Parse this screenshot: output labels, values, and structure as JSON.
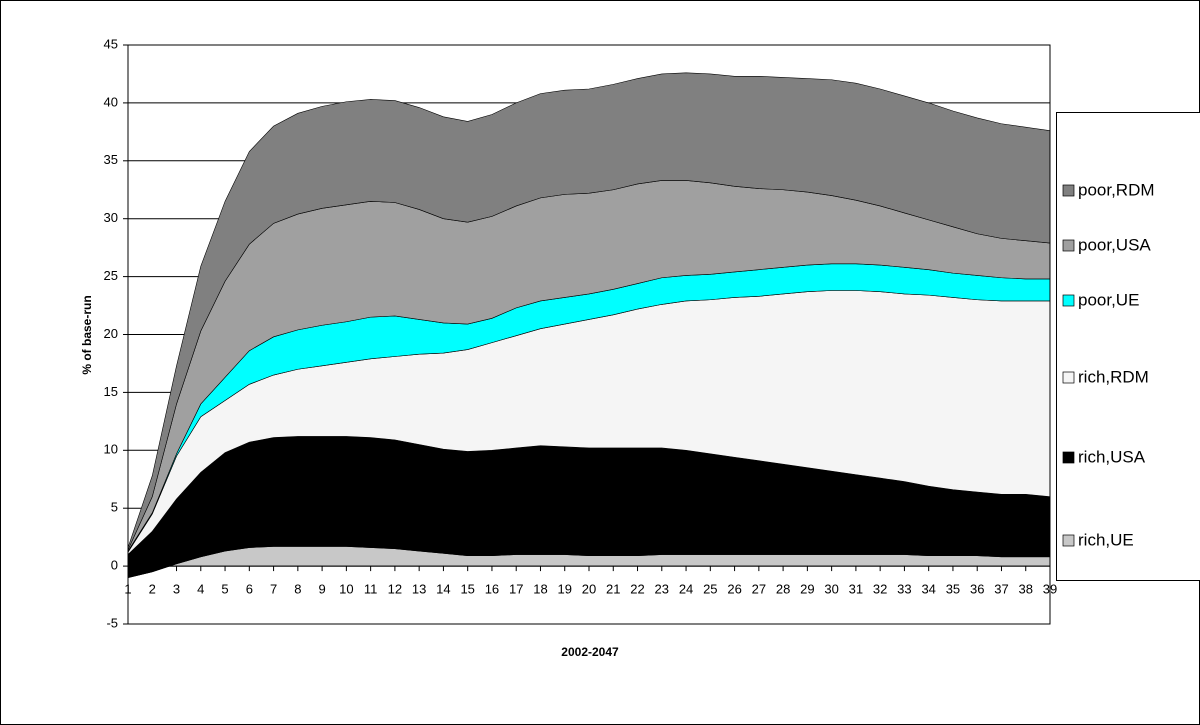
{
  "chart_data": {
    "type": "stacked-area",
    "y_label": "% of base-run",
    "x_label": "2002-2047",
    "categories": [
      "1",
      "2",
      "3",
      "4",
      "5",
      "6",
      "7",
      "8",
      "9",
      "10",
      "11",
      "12",
      "13",
      "14",
      "15",
      "16",
      "17",
      "18",
      "19",
      "20",
      "21",
      "22",
      "23",
      "24",
      "25",
      "26",
      "27",
      "28",
      "29",
      "30",
      "31",
      "32",
      "33",
      "34",
      "35",
      "36",
      "37",
      "38",
      "39"
    ],
    "series": [
      {
        "name": "rich,UE",
        "color": "#c8c8c8",
        "values": [
          -1.0,
          -0.5,
          0.2,
          0.8,
          1.3,
          1.6,
          1.7,
          1.7,
          1.7,
          1.7,
          1.6,
          1.5,
          1.3,
          1.1,
          0.9,
          0.9,
          1.0,
          1.0,
          1.0,
          0.9,
          0.9,
          0.9,
          1.0,
          1.0,
          1.0,
          1.0,
          1.0,
          1.0,
          1.0,
          1.0,
          1.0,
          1.0,
          1.0,
          0.9,
          0.9,
          0.9,
          0.8,
          0.8,
          0.8
        ]
      },
      {
        "name": "rich,USA",
        "color": "#000000",
        "values": [
          2.0,
          3.5,
          5.6,
          7.3,
          8.5,
          9.1,
          9.4,
          9.5,
          9.5,
          9.5,
          9.5,
          9.4,
          9.2,
          9.0,
          9.0,
          9.1,
          9.2,
          9.4,
          9.3,
          9.3,
          9.3,
          9.3,
          9.2,
          9.0,
          8.7,
          8.4,
          8.1,
          7.8,
          7.5,
          7.2,
          6.9,
          6.6,
          6.3,
          6.0,
          5.7,
          5.5,
          5.4,
          5.4,
          5.2
        ]
      },
      {
        "name": "rich,RDM",
        "color": "#f5f5f5",
        "values": [
          0.2,
          1.5,
          3.7,
          4.8,
          4.5,
          5.0,
          5.4,
          5.8,
          6.1,
          6.4,
          6.8,
          7.2,
          7.8,
          8.3,
          8.8,
          9.3,
          9.7,
          10.1,
          10.6,
          11.1,
          11.5,
          12.0,
          12.4,
          12.9,
          13.3,
          13.8,
          14.2,
          14.7,
          15.2,
          15.6,
          15.9,
          16.1,
          16.2,
          16.5,
          16.6,
          16.6,
          16.7,
          16.7,
          16.9
        ]
      },
      {
        "name": "poor,UE",
        "color": "#00ffff",
        "values": [
          0.1,
          0.1,
          0.2,
          1.1,
          2.0,
          2.9,
          3.3,
          3.4,
          3.5,
          3.5,
          3.6,
          3.5,
          3.0,
          2.6,
          2.2,
          2.1,
          2.4,
          2.4,
          2.3,
          2.2,
          2.2,
          2.2,
          2.3,
          2.2,
          2.2,
          2.2,
          2.3,
          2.3,
          2.3,
          2.3,
          2.3,
          2.3,
          2.3,
          2.2,
          2.1,
          2.1,
          2.0,
          1.9,
          1.9
        ]
      },
      {
        "name": "poor,USA",
        "color": "#a0a0a0",
        "values": [
          0.1,
          1.4,
          4.3,
          6.3,
          8.3,
          9.2,
          9.8,
          10.0,
          10.1,
          10.1,
          10.0,
          9.8,
          9.5,
          9.0,
          8.8,
          8.8,
          8.8,
          8.9,
          8.9,
          8.7,
          8.6,
          8.6,
          8.4,
          8.2,
          7.9,
          7.4,
          7.0,
          6.7,
          6.3,
          5.9,
          5.5,
          5.1,
          4.7,
          4.3,
          4.0,
          3.6,
          3.4,
          3.3,
          3.1
        ]
      },
      {
        "name": "poor,RDM",
        "color": "#808080",
        "values": [
          0.2,
          1.8,
          3.3,
          5.6,
          6.9,
          8.0,
          8.4,
          8.7,
          8.8,
          8.9,
          8.8,
          8.8,
          8.8,
          8.8,
          8.7,
          8.8,
          8.9,
          9.0,
          9.0,
          9.0,
          9.1,
          9.1,
          9.2,
          9.3,
          9.4,
          9.5,
          9.7,
          9.7,
          9.8,
          10.0,
          10.1,
          10.1,
          10.1,
          10.1,
          10.0,
          10.0,
          9.9,
          9.8,
          9.7
        ]
      }
    ],
    "ylim": [
      -5,
      45
    ],
    "yticks": [
      -5,
      0,
      5,
      10,
      15,
      20,
      25,
      30,
      35,
      40,
      45
    ],
    "grid": true,
    "legend": "right"
  }
}
